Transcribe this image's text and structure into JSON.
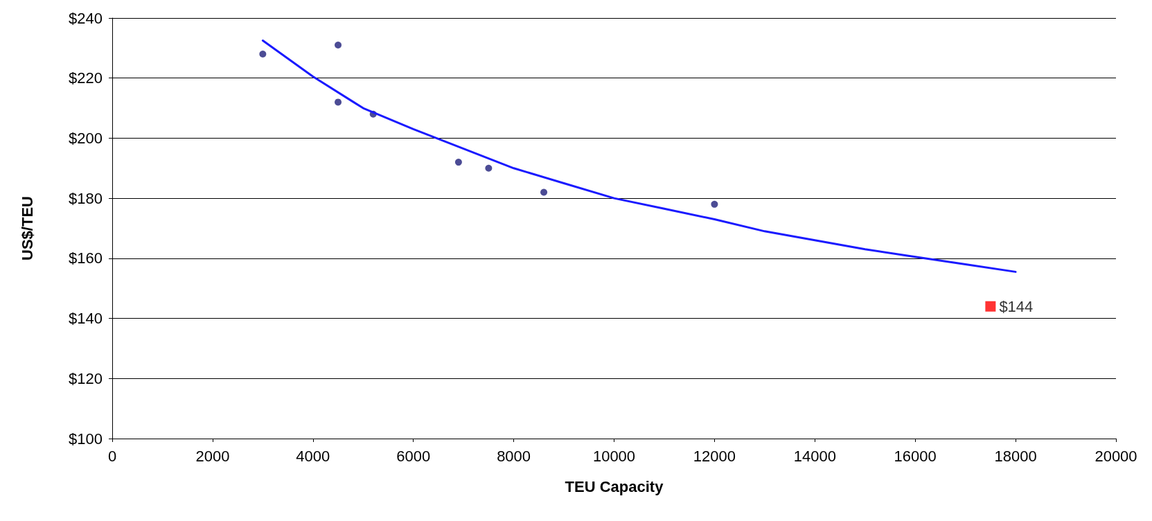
{
  "chart_data": {
    "type": "scatter",
    "xlabel": "TEU Capacity",
    "ylabel": "US$/TEU",
    "xlim": [
      0,
      20000
    ],
    "xticks": [
      0,
      2000,
      4000,
      6000,
      8000,
      10000,
      12000,
      14000,
      16000,
      18000,
      20000
    ],
    "ylim": [
      100,
      240
    ],
    "yticks": [
      {
        "value": 100,
        "label": "$100"
      },
      {
        "value": 120,
        "label": "$120"
      },
      {
        "value": 140,
        "label": "$140"
      },
      {
        "value": 160,
        "label": "$160"
      },
      {
        "value": 180,
        "label": "$180"
      },
      {
        "value": 200,
        "label": "$200"
      },
      {
        "value": 220,
        "label": "$220"
      },
      {
        "value": 240,
        "label": "$240"
      }
    ],
    "grid": "y",
    "series": [
      {
        "type": "line",
        "color": "#1a1aff",
        "marker": "none",
        "line_style": "solid",
        "x": [
          3000,
          4000,
          5000,
          6000,
          7000,
          8000,
          9000,
          10000,
          11000,
          12000,
          13000,
          14000,
          15000,
          16000,
          17000,
          18000
        ],
        "values": [
          232.5,
          220.5,
          210,
          203,
          196.5,
          190,
          185,
          180,
          176.5,
          173,
          169,
          166,
          163,
          160.5,
          158,
          155.5
        ]
      },
      {
        "color": "#1f1f7a",
        "marker": "circle",
        "x": [
          3000,
          4500,
          4500,
          5200,
          6900,
          7500,
          8600,
          12000
        ],
        "values": [
          228,
          231,
          212,
          208,
          192,
          190,
          182,
          178
        ]
      },
      {
        "color": "#ff0000",
        "marker": "square",
        "x": [
          17500
        ],
        "values": [
          144
        ],
        "value_labels": [
          "$144"
        ]
      }
    ]
  }
}
